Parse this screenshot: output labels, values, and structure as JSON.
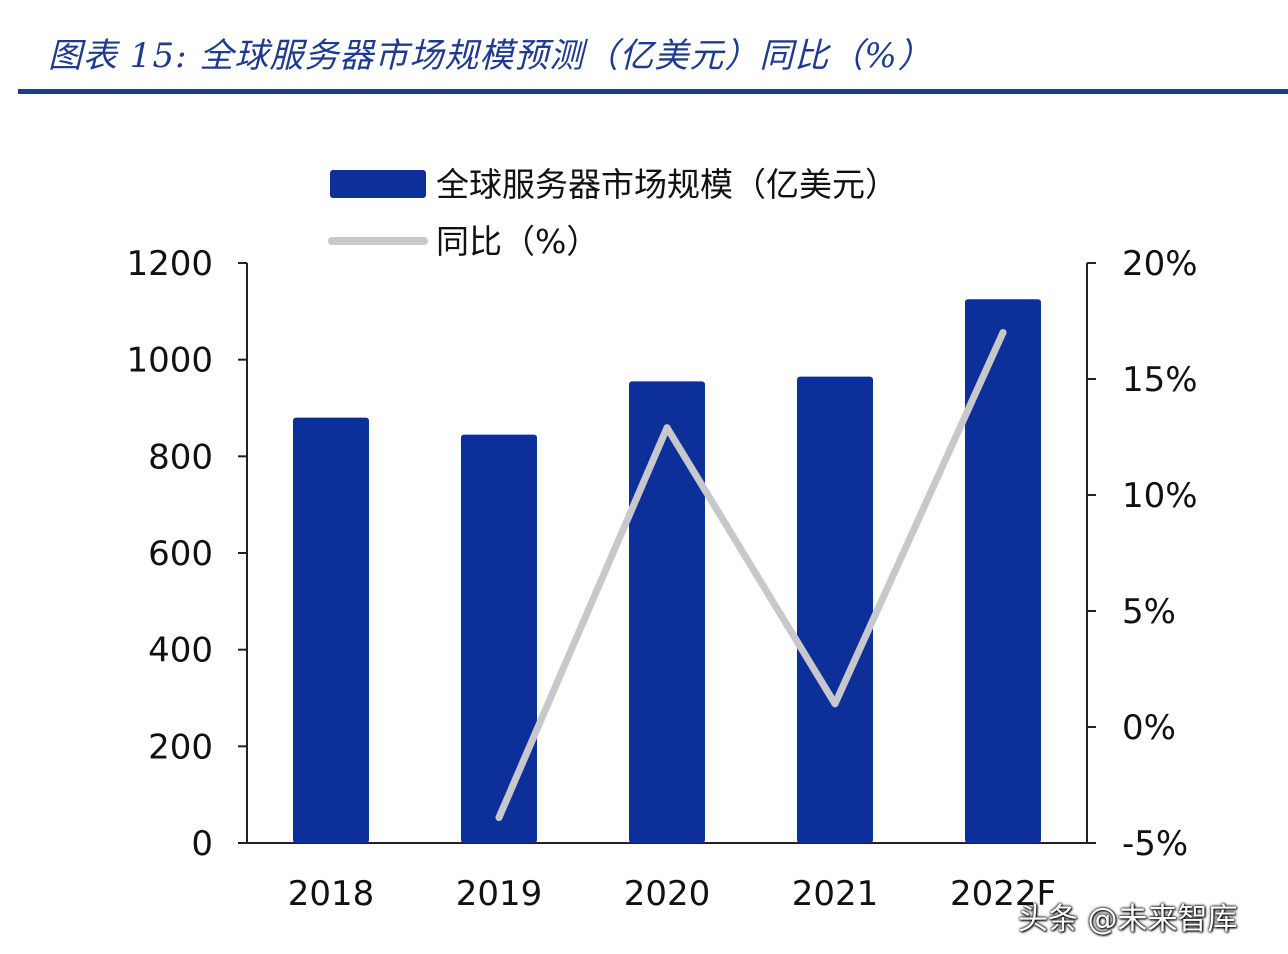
{
  "figure_title": "图表 15:  全球服务器市场规模预测（亿美元）同比（%）",
  "watermark": "头条 @未来智库",
  "colors": {
    "title": "#1f3b8f",
    "bar": "#0d2f99",
    "line": "#c8c8cc",
    "axis": "#222222"
  },
  "chart_data": {
    "type": "bar",
    "title": "",
    "xlabel": "",
    "ylabel": "",
    "categories": [
      "2018",
      "2019",
      "2020",
      "2021",
      "2022F"
    ],
    "ylim": [
      0,
      1200
    ],
    "y_ticks": [
      "0",
      "200",
      "400",
      "600",
      "800",
      "1000",
      "1200"
    ],
    "y2lim": [
      -5,
      20
    ],
    "y2_ticks": [
      "-5%",
      "0%",
      "5%",
      "10%",
      "15%",
      "20%"
    ],
    "series": [
      {
        "name": "全球服务器市场规模（亿美元）",
        "type": "bar",
        "axis": "left",
        "values": [
          880,
          845,
          955,
          965,
          1125
        ]
      },
      {
        "name": "同比（%）",
        "type": "line",
        "axis": "right",
        "values": [
          null,
          -3.9,
          12.9,
          1.0,
          17.0
        ]
      }
    ],
    "legend_position": "top"
  }
}
